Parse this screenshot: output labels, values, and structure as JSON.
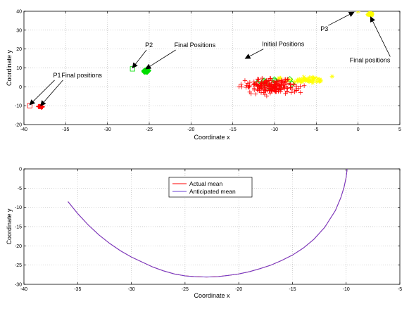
{
  "chart_data": [
    {
      "type": "scatter",
      "xlabel": "Coordinate x",
      "ylabel": "Coordinate y",
      "xlim": [
        -40,
        5
      ],
      "ylim": [
        -20,
        40
      ],
      "xticks": [
        -40,
        -35,
        -30,
        -25,
        -20,
        -15,
        -10,
        -5,
        0,
        5
      ],
      "yticks": [
        -20,
        -10,
        0,
        10,
        20,
        30,
        40
      ],
      "grid": true,
      "series": [
        {
          "color": "#ff0000",
          "marker": "plus",
          "cluster": {
            "x_range": [
              -16.5,
              -4
            ],
            "y_range": [
              -7,
              8
            ],
            "count": 200
          },
          "final_position": [
            -38,
            -10.5
          ],
          "start_marker": {
            "shape": "square",
            "point": [
              -39.3,
              -10
            ]
          }
        },
        {
          "color": "#00dd00",
          "marker": "diamond",
          "cluster": {
            "x_range": [
              -14.5,
              -6.5
            ],
            "y_range": [
              -2,
              7
            ],
            "count": 15
          },
          "final_position": [
            -25.4,
            8.5
          ],
          "start_marker": {
            "shape": "square",
            "point": [
              -27,
              9.5
            ]
          }
        },
        {
          "color": "#ffff00",
          "marker": "star",
          "cluster": {
            "x_range": [
              -11,
              -2
            ],
            "y_range": [
              0,
              7
            ],
            "count": 45
          },
          "final_position": [
            1.5,
            38.5
          ],
          "start_marker": {
            "shape": "star",
            "point": [
              0,
              40
            ]
          }
        }
      ],
      "annotations": [
        {
          "label": "P1",
          "text_at": [
            -36.5,
            5
          ],
          "arrow_to": [
            -39.3,
            -9.5
          ]
        },
        {
          "label": "Final positions",
          "text_at": [
            -35.5,
            5
          ],
          "arrow_to": [
            -38,
            -10
          ]
        },
        {
          "label": "P2",
          "text_at": [
            -25.5,
            21
          ],
          "arrow_to": [
            -27,
            10
          ]
        },
        {
          "label": "Final Positions",
          "text_at": [
            -22,
            21
          ],
          "arrow_to": [
            -25.4,
            9.5
          ]
        },
        {
          "label": "Initial Positions",
          "text_at": [
            -11.5,
            21.5
          ],
          "arrow_to": [
            -13.5,
            15
          ]
        },
        {
          "label": "P3",
          "text_at": [
            -4.5,
            29.5
          ],
          "arrow_to": [
            -0.5,
            39.5
          ]
        },
        {
          "label": "Final positions",
          "text_at": [
            -1,
            13
          ],
          "arrow_to": [
            1.5,
            37
          ]
        }
      ]
    },
    {
      "type": "line",
      "xlabel": "Coordinate x",
      "ylabel": "Coordinate y",
      "xlim": [
        -40,
        -5
      ],
      "ylim": [
        -30,
        0
      ],
      "xticks": [
        -40,
        -35,
        -30,
        -25,
        -20,
        -15,
        -10,
        -5
      ],
      "yticks": [
        -30,
        -25,
        -20,
        -15,
        -10,
        -5,
        0
      ],
      "grid": true,
      "legend_position": "top-center",
      "series": [
        {
          "name": "Actual mean",
          "color": "#ff0000",
          "x": [
            -35.9,
            -35.0,
            -34.0,
            -33.0,
            -32.0,
            -31.0,
            -30.0,
            -29.0,
            -28.0,
            -27.0,
            -26.0,
            -25.0,
            -24.0,
            -23.0,
            -22.0,
            -21.0,
            -20.0,
            -19.0,
            -18.0,
            -17.0,
            -16.0,
            -15.0,
            -14.0,
            -13.0,
            -12.0,
            -11.0,
            -10.5,
            -10.2,
            -10.0,
            -9.9
          ],
          "y": [
            -8.5,
            -11.6,
            -14.6,
            -17.2,
            -19.4,
            -21.3,
            -22.9,
            -24.2,
            -25.5,
            -26.5,
            -27.3,
            -27.8,
            -28.0,
            -28.1,
            -28.0,
            -27.7,
            -27.3,
            -26.7,
            -25.9,
            -25.0,
            -23.8,
            -22.4,
            -20.6,
            -18.3,
            -15.2,
            -10.8,
            -7.5,
            -4.8,
            -2.2,
            0.0
          ]
        },
        {
          "name": "Anticipated mean",
          "color": "#6a3fd4",
          "x": [
            -35.9,
            -35.0,
            -34.0,
            -33.0,
            -32.0,
            -31.0,
            -30.0,
            -29.0,
            -28.0,
            -27.0,
            -26.0,
            -25.0,
            -24.0,
            -23.0,
            -22.0,
            -21.0,
            -20.0,
            -19.0,
            -18.0,
            -17.0,
            -16.0,
            -15.0,
            -14.0,
            -13.0,
            -12.0,
            -11.0,
            -10.5,
            -10.2,
            -10.0,
            -9.9
          ],
          "y": [
            -8.5,
            -11.6,
            -14.6,
            -17.2,
            -19.4,
            -21.3,
            -22.9,
            -24.2,
            -25.5,
            -26.5,
            -27.3,
            -27.8,
            -28.0,
            -28.1,
            -28.0,
            -27.7,
            -27.3,
            -26.7,
            -25.9,
            -25.0,
            -23.8,
            -22.4,
            -20.6,
            -18.3,
            -15.2,
            -10.8,
            -7.5,
            -4.8,
            -2.2,
            0.0
          ]
        }
      ]
    }
  ]
}
